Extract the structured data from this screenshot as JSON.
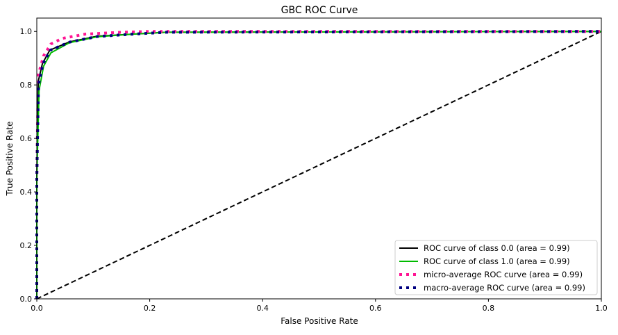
{
  "chart_data": {
    "type": "line",
    "title": "GBC ROC Curve",
    "xlabel": "False Positive Rate",
    "ylabel": "True Positive Rate",
    "xlim": [
      0,
      1.0
    ],
    "ylim": [
      0,
      1.05
    ],
    "xticks": [
      "0.0",
      "0.2",
      "0.4",
      "0.6",
      "0.8",
      "1.0"
    ],
    "yticks": [
      "0.0",
      "0.2",
      "0.4",
      "0.6",
      "0.8",
      "1.0"
    ],
    "grid": false,
    "legend_position": "lower-right",
    "series": [
      {
        "name": "ROC curve of class 0.0 (area = 0.99)",
        "color": "#000000",
        "style": "solid",
        "x": [
          0,
          0,
          0.0025,
          0.01,
          0.023,
          0.058,
          0.107,
          0.17,
          0.23,
          1.0
        ],
        "y": [
          0,
          0.45,
          0.813,
          0.88,
          0.93,
          0.961,
          0.982,
          0.99,
          0.997,
          1.0
        ]
      },
      {
        "name": "ROC curve of class 1.0 (area = 0.99)",
        "color": "#00bb00",
        "style": "solid",
        "x": [
          0,
          0,
          0.004,
          0.012,
          0.025,
          0.058,
          0.107,
          0.17,
          0.23,
          1.0
        ],
        "y": [
          0,
          0.45,
          0.78,
          0.87,
          0.92,
          0.958,
          0.98,
          0.99,
          0.997,
          1.0
        ]
      },
      {
        "name": "micro-average ROC curve (area = 0.99)",
        "color": "#ff1493",
        "style": "dotted",
        "x": [
          0,
          0,
          0.0025,
          0.012,
          0.025,
          0.045,
          0.086,
          0.15,
          0.2,
          1.0
        ],
        "y": [
          0,
          0.45,
          0.836,
          0.909,
          0.953,
          0.974,
          0.99,
          0.997,
          1.0,
          1.0
        ]
      },
      {
        "name": "macro-average ROC curve (area = 0.99)",
        "color": "#000080",
        "style": "dotted",
        "x": [
          0,
          0,
          0.003,
          0.011,
          0.024,
          0.058,
          0.107,
          0.17,
          0.23,
          1.0
        ],
        "y": [
          0,
          0.45,
          0.8,
          0.88,
          0.93,
          0.96,
          0.981,
          0.99,
          0.997,
          1.0
        ]
      }
    ],
    "reference_line": {
      "x": [
        0,
        1
      ],
      "y": [
        0,
        1
      ],
      "color": "#000000",
      "style": "dashed"
    }
  }
}
